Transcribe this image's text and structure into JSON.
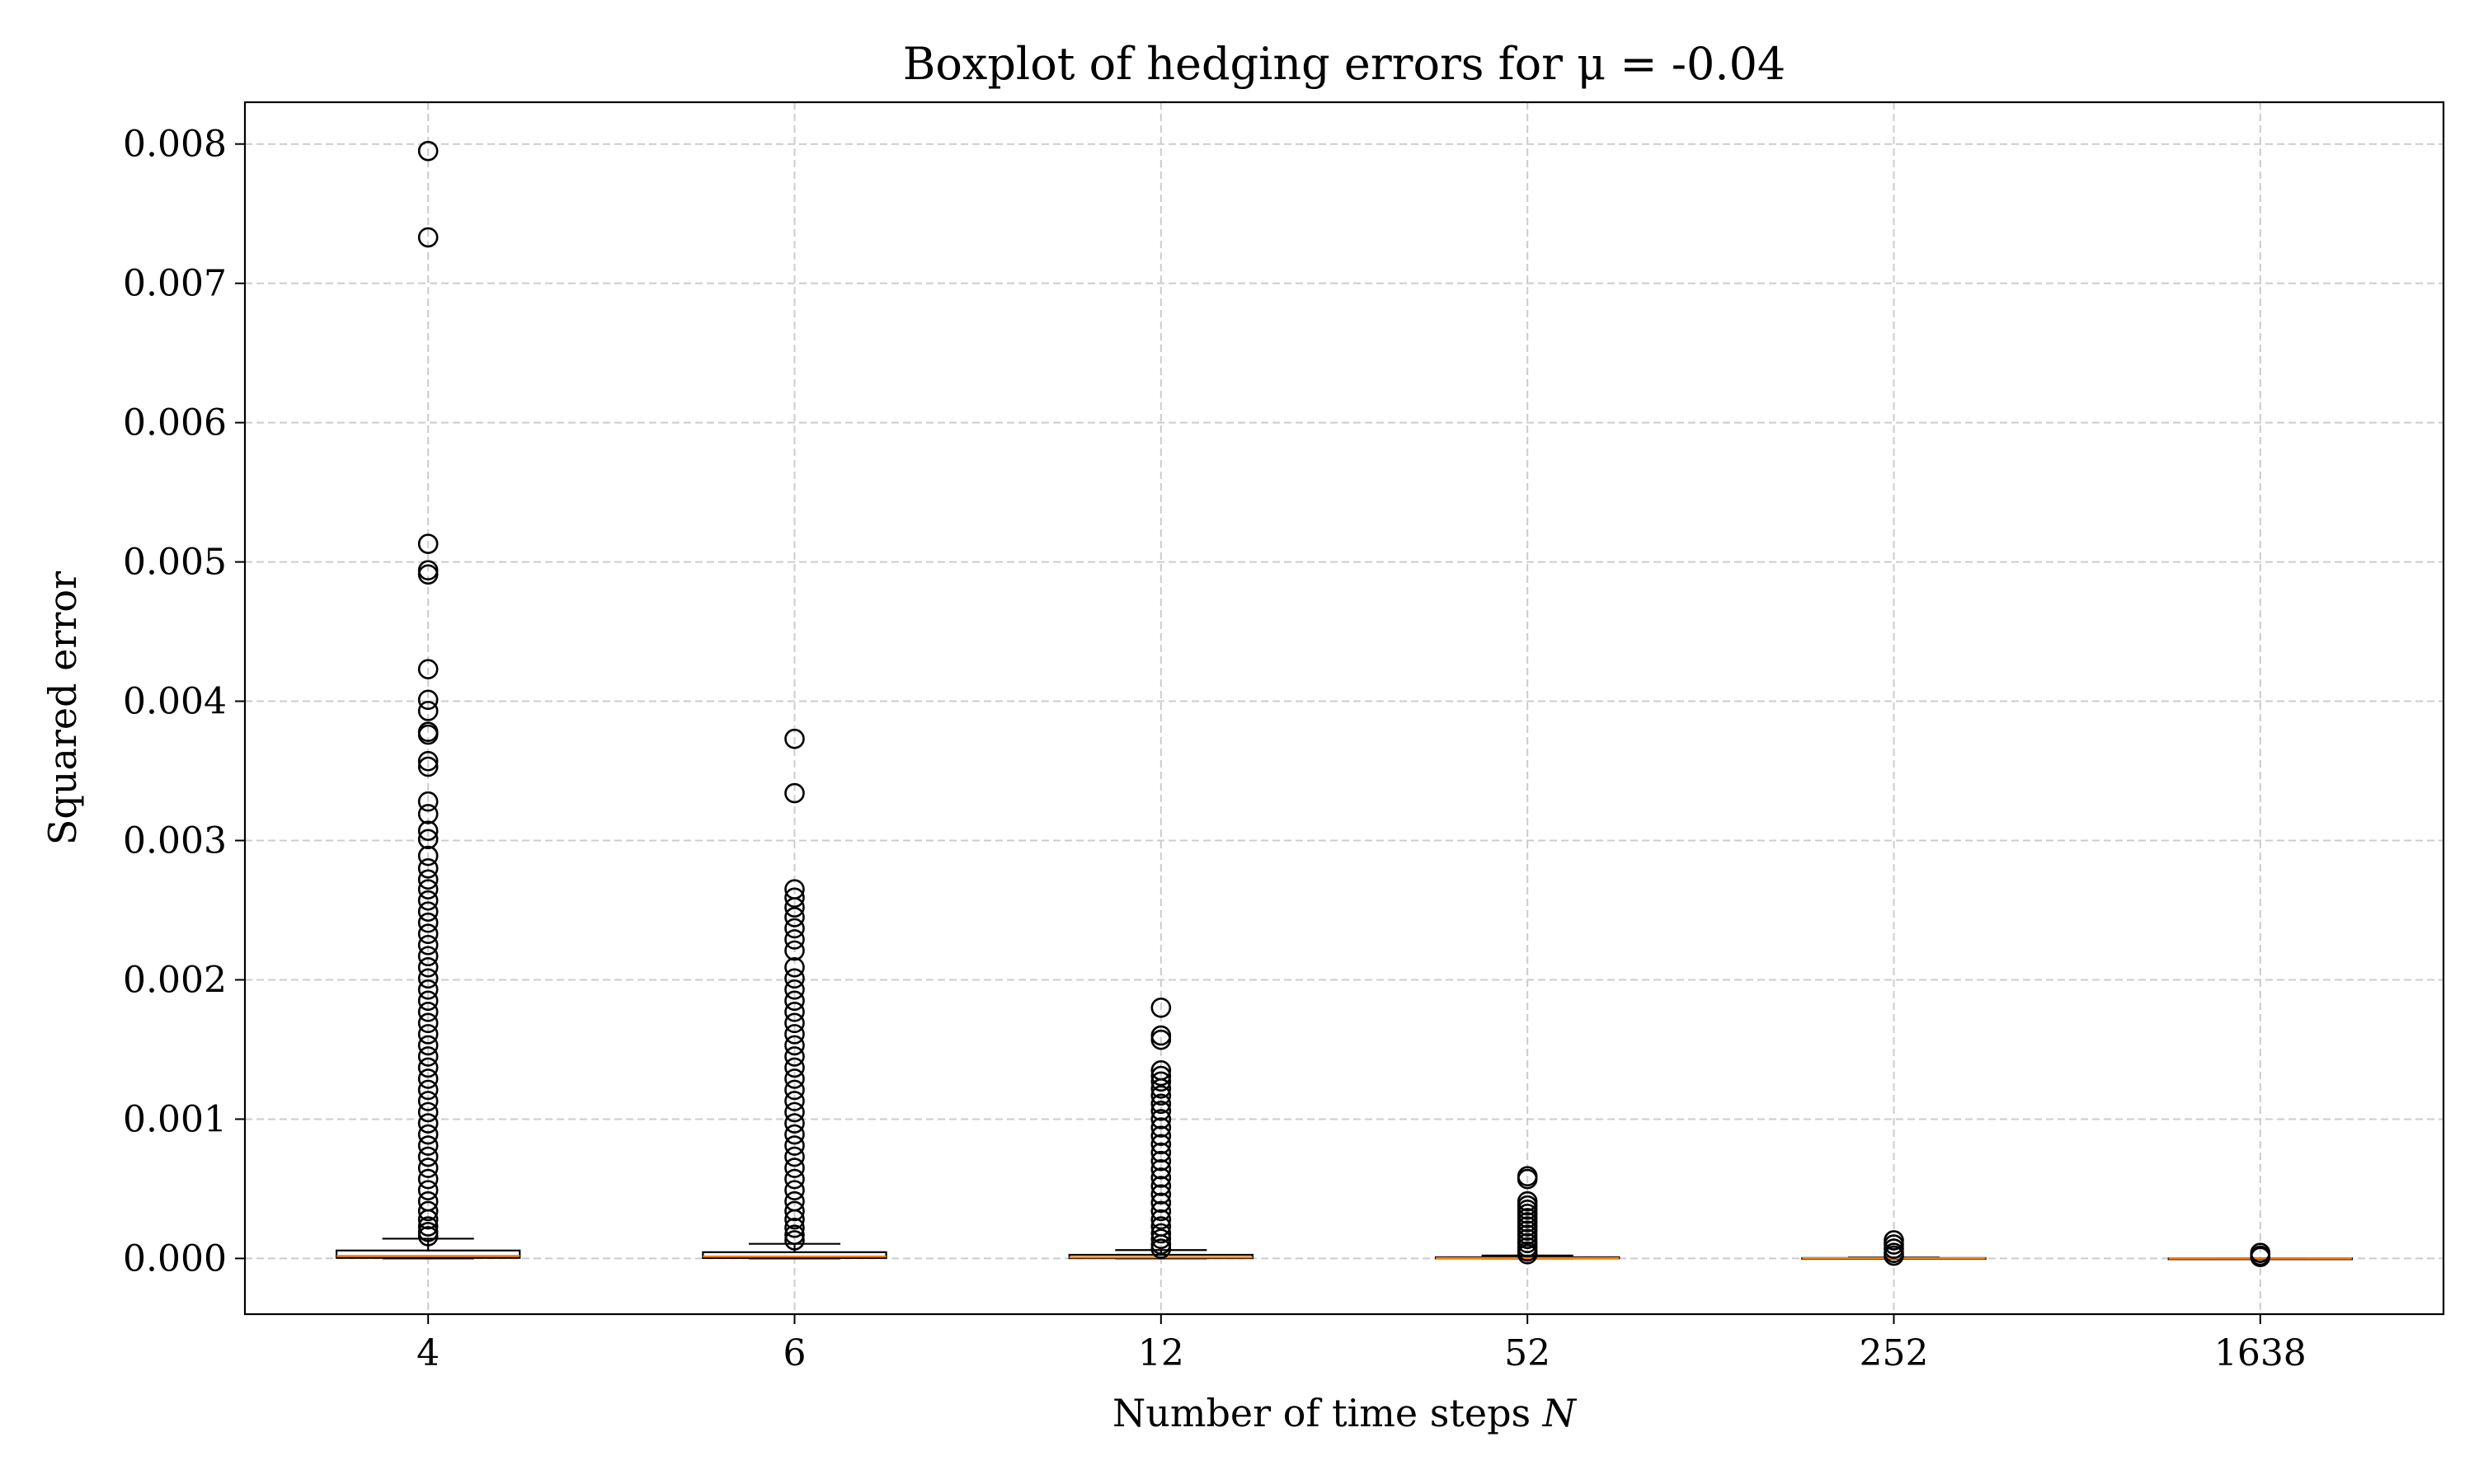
{
  "chart_data": {
    "type": "boxplot",
    "title": "Boxplot of hedging errors for μ = -0.04",
    "xlabel": "Number of time steps ",
    "xlabel_var": "N",
    "ylabel": "Squared error",
    "categories": [
      "4",
      "6",
      "12",
      "52",
      "252",
      "1638"
    ],
    "ylim": [
      -0.0004,
      0.0083
    ],
    "yticks": [
      0.0,
      0.001,
      0.002,
      0.003,
      0.004,
      0.005,
      0.006,
      0.007,
      0.008
    ],
    "ytick_labels": [
      "0.000",
      "0.001",
      "0.002",
      "0.003",
      "0.004",
      "0.005",
      "0.006",
      "0.007",
      "0.008"
    ],
    "grid": true,
    "colors": {
      "box": "#000000",
      "median": "#ff7f0e",
      "grid": "#cccccc",
      "flier": "#000000"
    },
    "boxes": [
      {
        "category": "4",
        "whisker_low": 0.0,
        "q1": 4e-06,
        "median": 1.8e-05,
        "q3": 5.7e-05,
        "whisker_high": 0.000142,
        "fliers": [
          0.00795,
          0.00733,
          0.00513,
          0.00494,
          0.00491,
          0.00423,
          0.00401,
          0.00393,
          0.00378,
          0.00376,
          0.00357,
          0.00353,
          0.00328,
          0.00319,
          0.00307,
          0.00301,
          0.00289,
          0.0028,
          0.00272,
          0.00265,
          0.00257,
          0.00249,
          0.00241,
          0.00233,
          0.00225,
          0.00217,
          0.00209,
          0.00201,
          0.00193,
          0.00185,
          0.00177,
          0.00169,
          0.00161,
          0.00153,
          0.00145,
          0.00137,
          0.00129,
          0.00121,
          0.00113,
          0.00105,
          0.00097,
          0.00089,
          0.00081,
          0.00073,
          0.00065,
          0.00057,
          0.00049,
          0.00041,
          0.00034,
          0.00028,
          0.00023,
          0.00019,
          0.00016
        ]
      },
      {
        "category": "6",
        "whisker_low": 0.0,
        "q1": 3e-06,
        "median": 1.4e-05,
        "q3": 4.5e-05,
        "whisker_high": 0.000105,
        "fliers": [
          0.00373,
          0.00334,
          0.00265,
          0.00259,
          0.00252,
          0.00245,
          0.00237,
          0.00229,
          0.00221,
          0.00209,
          0.00201,
          0.00193,
          0.00185,
          0.00177,
          0.00169,
          0.00161,
          0.00153,
          0.00145,
          0.00137,
          0.00129,
          0.00121,
          0.00113,
          0.00105,
          0.00097,
          0.00089,
          0.00081,
          0.00073,
          0.00065,
          0.00057,
          0.00049,
          0.00041,
          0.00034,
          0.00028,
          0.00022,
          0.00017,
          0.00013
        ]
      },
      {
        "category": "12",
        "whisker_low": 0.0,
        "q1": 2e-06,
        "median": 8e-06,
        "q3": 2.6e-05,
        "whisker_high": 6e-05,
        "fliers": [
          0.0018,
          0.0016,
          0.00157,
          0.00135,
          0.00131,
          0.00127,
          0.00122,
          0.00117,
          0.00111,
          0.00106,
          0.001,
          0.00094,
          0.00088,
          0.00082,
          0.00076,
          0.0007,
          0.00064,
          0.00058,
          0.00052,
          0.00046,
          0.0004,
          0.00034,
          0.00028,
          0.00023,
          0.00018,
          0.00014,
          0.0001,
          7e-05
        ]
      },
      {
        "category": "52",
        "whisker_low": 0.0,
        "q1": 1e-06,
        "median": 3e-06,
        "q3": 9e-06,
        "whisker_high": 2.1e-05,
        "fliers": [
          0.00059,
          0.00057,
          0.00041,
          0.00038,
          0.00035,
          0.00032,
          0.00029,
          0.00026,
          0.00023,
          0.0002,
          0.00017,
          0.00014,
          0.00011,
          8e-05,
          5e-05,
          3e-05
        ]
      },
      {
        "category": "252",
        "whisker_low": 0.0,
        "q1": 5e-07,
        "median": 1e-06,
        "q3": 3e-06,
        "whisker_high": 6e-06,
        "fliers": [
          0.00013,
          0.0001,
          7e-05,
          4e-05,
          2e-05
        ]
      },
      {
        "category": "1638",
        "whisker_low": 0.0,
        "q1": 1e-07,
        "median": 2e-07,
        "q3": 5e-07,
        "whisker_high": 1e-06,
        "fliers": [
          4e-05,
          2e-05,
          1e-05
        ]
      }
    ]
  }
}
